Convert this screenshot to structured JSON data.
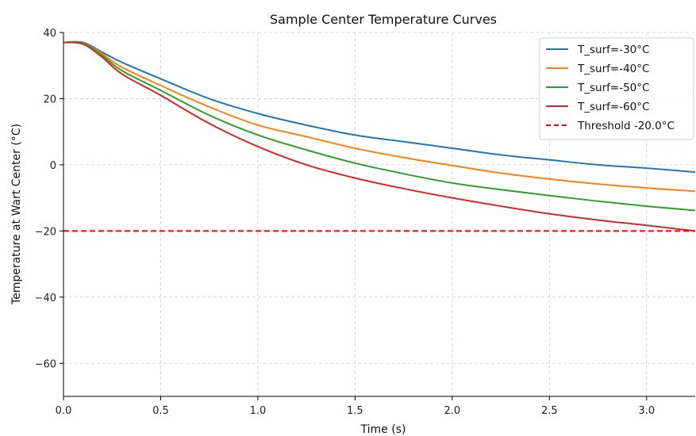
{
  "chart_data": {
    "type": "line",
    "title": "Sample Center Temperature Curves",
    "xlabel": "Time (s)",
    "ylabel": "Temperature at Wart Center (°C)",
    "xlim": [
      0,
      3.25
    ],
    "ylim": [
      -70,
      40
    ],
    "xticks": [
      0.0,
      0.5,
      1.0,
      1.5,
      2.0,
      2.5,
      3.0
    ],
    "xtick_labels": [
      "0.0",
      "0.5",
      "1.0",
      "1.5",
      "2.0",
      "2.5",
      "3.0"
    ],
    "yticks": [
      -60,
      -40,
      -20,
      0,
      20,
      40
    ],
    "ytick_labels": [
      "−60",
      "−40",
      "−20",
      "0",
      "20",
      "40"
    ],
    "grid": true,
    "legend_position": "top-right",
    "x": [
      0.0,
      0.1,
      0.2,
      0.3,
      0.5,
      0.75,
      1.0,
      1.25,
      1.5,
      1.75,
      2.0,
      2.25,
      2.5,
      2.75,
      3.0,
      3.25
    ],
    "series": [
      {
        "name": "T_surf=-30°C",
        "color": "#1f77b4",
        "style": "solid",
        "values": [
          37,
          37,
          34,
          31,
          26,
          20,
          15.5,
          12,
          9,
          7,
          5,
          3,
          1.5,
          0,
          -1,
          -2.2
        ]
      },
      {
        "name": "T_surf=-40°C",
        "color": "#ff7f0e",
        "style": "solid",
        "values": [
          37,
          36.8,
          33.5,
          29.5,
          24,
          17.5,
          12,
          8.5,
          5,
          2.2,
          -0.2,
          -2.5,
          -4.3,
          -5.8,
          -7,
          -8
        ]
      },
      {
        "name": "T_surf=-50°C",
        "color": "#2ca02c",
        "style": "solid",
        "values": [
          37,
          36.7,
          33,
          28.5,
          22.5,
          15,
          9,
          4.5,
          0.5,
          -2.7,
          -5.5,
          -7.5,
          -9.3,
          -11,
          -12.5,
          -13.8
        ]
      },
      {
        "name": "T_surf=-60°C",
        "color": "#d62728",
        "style": "solid",
        "values": [
          37,
          36.5,
          32.5,
          27.5,
          21,
          12.5,
          5.5,
          0,
          -4,
          -7.2,
          -10,
          -12.5,
          -14.8,
          -16.7,
          -18.3,
          -20
        ]
      },
      {
        "name": "Threshold -20.0°C",
        "color": "#ff0000",
        "style": "dashed",
        "values": [
          -20,
          -20,
          -20,
          -20,
          -20,
          -20,
          -20,
          -20,
          -20,
          -20,
          -20,
          -20,
          -20,
          -20,
          -20,
          -20
        ]
      }
    ]
  }
}
